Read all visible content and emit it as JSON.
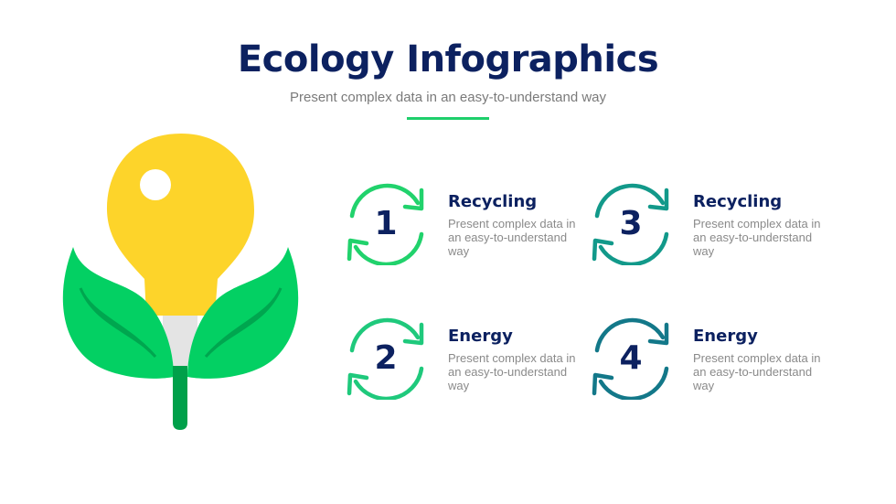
{
  "header": {
    "title": "Ecology Infographics",
    "subtitle": "Present complex data in an easy-to-understand way",
    "accent": "#1ecf6b"
  },
  "illustration": {
    "icon": "lightbulb-with-leaves-icon",
    "colors": {
      "bulb": "#fdd42a",
      "leaf": "#03d063",
      "vein": "#00a64f",
      "base": "#e4e4e4",
      "stem": "#00a04a"
    }
  },
  "items": [
    {
      "number": "1",
      "title": "Recycling",
      "description": "Present complex data in an easy-to-understand way",
      "color": "#21d26c",
      "icon": "refresh-cycle-icon"
    },
    {
      "number": "2",
      "title": "Energy",
      "description": "Present complex data in an easy-to-understand way",
      "color": "#1fc97c",
      "icon": "refresh-cycle-icon"
    },
    {
      "number": "3",
      "title": "Recycling",
      "description": "Present complex data in an easy-to-understand way",
      "color": "#12998a",
      "icon": "refresh-cycle-icon"
    },
    {
      "number": "4",
      "title": "Energy",
      "description": "Present complex data in an easy-to-understand way",
      "color": "#137889",
      "icon": "refresh-cycle-icon"
    }
  ]
}
